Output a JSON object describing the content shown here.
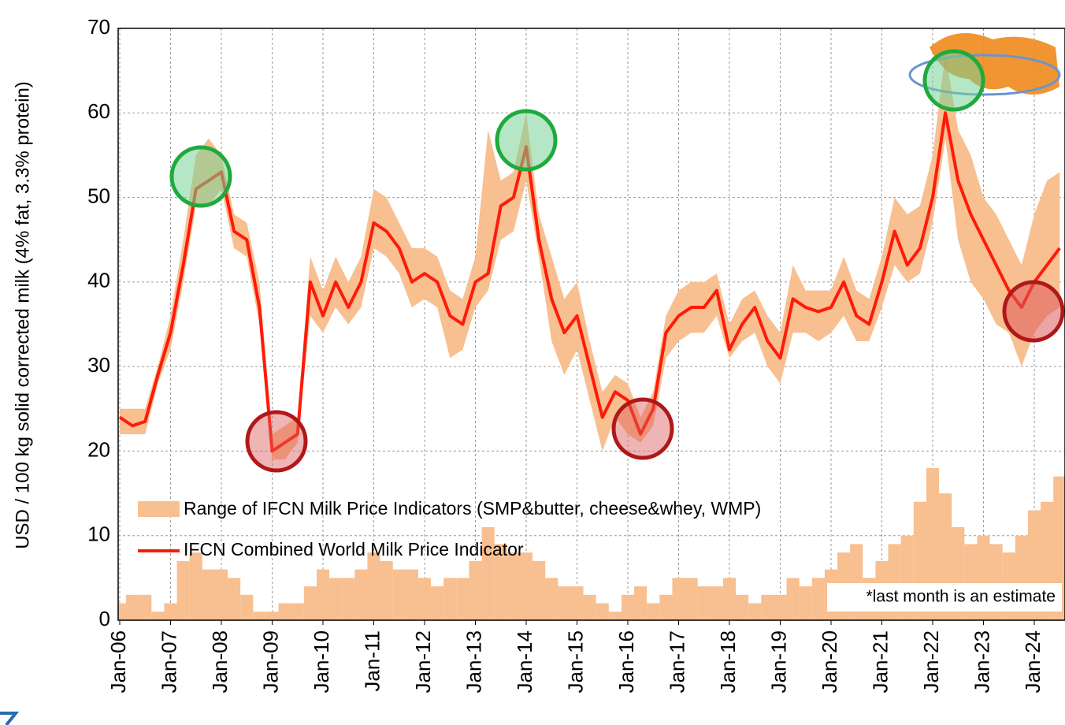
{
  "chart_data": {
    "type": "line",
    "ylabel": "USD / 100 kg solid corrected milk (4% fat, 3.3% protein)",
    "annotation": "*last month is an estimate",
    "categories": [
      "Jan-06",
      null,
      null,
      null,
      "Jan-07",
      null,
      null,
      null,
      "Jan-08",
      null,
      null,
      null,
      "Jan-09",
      null,
      null,
      null,
      "Jan-10",
      null,
      null,
      null,
      "Jan-11",
      null,
      null,
      null,
      "Jan-12",
      null,
      null,
      null,
      "Jan-13",
      null,
      null,
      null,
      "Jan-14",
      null,
      null,
      null,
      "Jan-15",
      null,
      null,
      null,
      "Jan-16",
      null,
      null,
      null,
      "Jan-17",
      null,
      null,
      null,
      "Jan-18",
      null,
      null,
      null,
      "Jan-19",
      null,
      null,
      null,
      "Jan-20",
      null,
      null,
      null,
      "Jan-21",
      null,
      null,
      null,
      "Jan-22",
      null,
      null,
      null,
      "Jan-23",
      null,
      null,
      null,
      "Jan-24",
      null,
      null
    ],
    "series": [
      {
        "name": "Range of IFCN Milk Price Indicators (SMP&butter, cheese&whey, WMP)",
        "color": "#f8bf90",
        "low": [
          22,
          22,
          22,
          28,
          32,
          40,
          49,
          49,
          51,
          44,
          43,
          35,
          19,
          19,
          21,
          36,
          34,
          37,
          35,
          37,
          44,
          43,
          41,
          37,
          38,
          37,
          31,
          32,
          37,
          39,
          45,
          46,
          52,
          43,
          33,
          29,
          32,
          26,
          20,
          24,
          22,
          21,
          23,
          31,
          33,
          34,
          34,
          36,
          31,
          33,
          34,
          30,
          28,
          34,
          34,
          33,
          34,
          36,
          33,
          33,
          37,
          42,
          40,
          41,
          47,
          57,
          45,
          40,
          38,
          35,
          34,
          30,
          34,
          36,
          37
        ],
        "high": [
          25,
          25,
          25,
          30,
          36,
          45,
          55,
          57,
          55,
          48,
          47,
          40,
          22,
          23,
          24,
          43,
          39,
          43,
          40,
          43,
          51,
          50,
          47,
          44,
          44,
          43,
          39,
          38,
          43,
          58,
          52,
          53,
          60,
          48,
          43,
          38,
          40,
          33,
          27,
          29,
          28,
          24,
          27,
          36,
          39,
          40,
          40,
          41,
          35,
          38,
          39,
          36,
          34,
          42,
          39,
          39,
          39,
          43,
          39,
          38,
          43,
          50,
          48,
          49,
          55,
          67,
          58,
          55,
          50,
          48,
          45,
          42,
          48,
          52,
          53
        ]
      },
      {
        "name": "IFCN Combined World Milk Price Indicator",
        "color": "#ff1a0a",
        "values": [
          24,
          23,
          23.5,
          29,
          34,
          42,
          51,
          52,
          53,
          46,
          45,
          37,
          20,
          21,
          22,
          40,
          36,
          40,
          37,
          40,
          47,
          46,
          44,
          40,
          41,
          40,
          36,
          35,
          40,
          41,
          49,
          50,
          56,
          45,
          38,
          34,
          36,
          30,
          24,
          27,
          26,
          22,
          25,
          34,
          36,
          37,
          37,
          39,
          32,
          35,
          37,
          33,
          31,
          38,
          37,
          36.5,
          37,
          40,
          36,
          35,
          40,
          46,
          42,
          44,
          50,
          60,
          52,
          48,
          45,
          42,
          39,
          37,
          40,
          42,
          44
        ]
      },
      {
        "color": "#f8bf90",
        "values": [
          2,
          3,
          3,
          1,
          2,
          7,
          8,
          6,
          6,
          5,
          3,
          1,
          1,
          2,
          2,
          4,
          6,
          5,
          5,
          6,
          8,
          7,
          6,
          6,
          5,
          4,
          5,
          5,
          7,
          11,
          9,
          8,
          8,
          7,
          5,
          4,
          4,
          3,
          2,
          1,
          3,
          4,
          2,
          3,
          5,
          5,
          4,
          4,
          5,
          3,
          2,
          3,
          3,
          5,
          4,
          5,
          6,
          8,
          9,
          5,
          7,
          9,
          10,
          14,
          18,
          15,
          11,
          9,
          10,
          9,
          8,
          10,
          13,
          14,
          17
        ]
      }
    ],
    "ylim": [
      0,
      70
    ],
    "yticks": [
      0,
      10,
      20,
      30,
      40,
      50,
      60,
      70
    ],
    "grid": true
  }
}
